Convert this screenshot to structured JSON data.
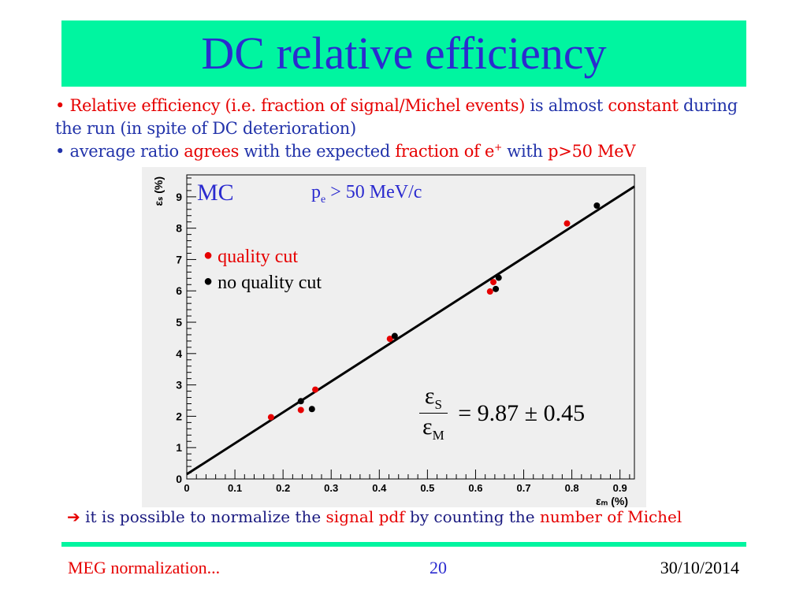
{
  "title": "DC relative efficiency",
  "bullets": {
    "b1_marker": "•",
    "b1_part1": "Relative efficiency (i.e. fraction of signal/Michel events)",
    "b1_part2": "is almost",
    "b1_part3": "constant",
    "b1_part4": "during the run (in spite of DC deterioration)",
    "b2_marker": "•",
    "b2_part1": "average ratio",
    "b2_part2": "agrees",
    "b2_part3": "with the expected",
    "b2_part4": "fraction of e",
    "b2_sup": "+",
    "b2_part5": "with",
    "b2_part6": "p>50 MeV"
  },
  "annotations": {
    "mc": "MC",
    "pe_p": "p",
    "pe_sub": "e",
    "pe_rest": " > 50 MeV/c",
    "legend_quality": "quality cut",
    "legend_noquality": "no quality cut",
    "formula_num": "ε",
    "formula_num_sub": "S",
    "formula_den": "ε",
    "formula_den_sub": "M",
    "formula_value": "= 9.87 ± 0.45"
  },
  "chart_data": {
    "type": "scatter",
    "xlabel": "ε_M (%)",
    "ylabel": "ε_S (%)",
    "xlim": [
      0,
      0.93
    ],
    "ylim": [
      0,
      9.7
    ],
    "xticks": [
      "0",
      "0.1",
      "0.2",
      "0.3",
      "0.4",
      "0.5",
      "0.6",
      "0.7",
      "0.8",
      "0.9"
    ],
    "yticks": [
      "0",
      "1",
      "2",
      "3",
      "4",
      "5",
      "6",
      "7",
      "8",
      "9"
    ],
    "grid": false,
    "series": [
      {
        "name": "quality cut",
        "color": "#e60000",
        "points": [
          [
            0.175,
            1.97
          ],
          [
            0.237,
            2.2
          ],
          [
            0.267,
            2.85
          ],
          [
            0.422,
            4.47
          ],
          [
            0.63,
            5.98
          ],
          [
            0.637,
            6.28
          ],
          [
            0.79,
            8.15
          ]
        ]
      },
      {
        "name": "no quality cut",
        "color": "#000000",
        "points": [
          [
            0.237,
            2.48
          ],
          [
            0.26,
            2.23
          ],
          [
            0.432,
            4.56
          ],
          [
            0.642,
            6.06
          ],
          [
            0.648,
            6.42
          ],
          [
            0.852,
            8.72
          ]
        ]
      }
    ],
    "fit_line": {
      "x": [
        0,
        0.93
      ],
      "y": [
        0.15,
        9.33
      ]
    }
  },
  "bottom_note": {
    "arrow": "➔",
    "part1": "it is possible to normalize the",
    "part2": "signal pdf",
    "part3": "by counting the",
    "part4": "number of Michel"
  },
  "footer": {
    "left": "MEG normalization...",
    "center": "20",
    "right": "30/10/2014"
  },
  "colors": {
    "accent_green": "#00f5a0",
    "title_blue": "#2b2bcf",
    "highlight_red": "#e60000",
    "plot_bg": "#efefef"
  }
}
